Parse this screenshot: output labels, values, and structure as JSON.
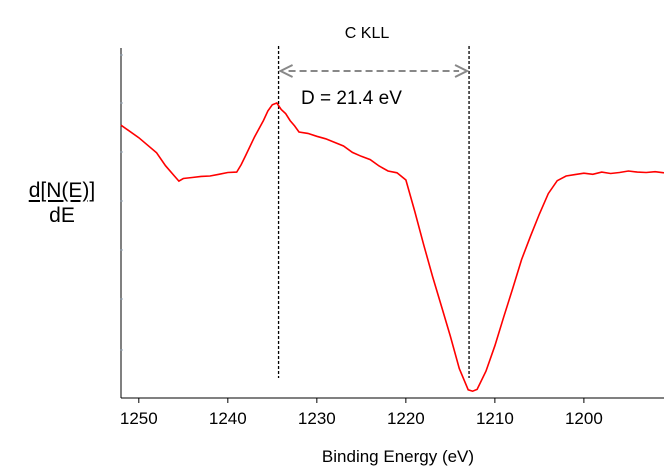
{
  "chart_data": {
    "type": "line",
    "title": "C KLL",
    "xlabel": "Binding Energy (eV)",
    "ylabel_numerator": "d[N(E)]",
    "ylabel_denominator": "dE",
    "x_reversed": true,
    "xlim": [
      1252,
      1191
    ],
    "ylim": [
      0,
      100
    ],
    "y_ticks_labeled": false,
    "x_ticks": [
      1250,
      1240,
      1230,
      1220,
      1210,
      1200
    ],
    "series_color": "#ff0000",
    "series": [
      {
        "x": [
          1252,
          1250,
          1248,
          1247,
          1246,
          1245.5,
          1245,
          1244,
          1243,
          1242,
          1241,
          1240,
          1239,
          1238.5,
          1238,
          1237,
          1236,
          1235.5,
          1235,
          1234.5,
          1234,
          1233.5,
          1233,
          1232.5,
          1232,
          1231,
          1230,
          1229,
          1228,
          1227,
          1226,
          1225,
          1224,
          1223,
          1222,
          1221,
          1220,
          1219,
          1218,
          1217,
          1216,
          1215,
          1214,
          1213,
          1212.5,
          1212,
          1211,
          1210,
          1209,
          1208,
          1207,
          1206,
          1205,
          1204,
          1203,
          1202,
          1201,
          1200,
          1199,
          1198,
          1197,
          1196,
          1195,
          1194,
          1193,
          1192,
          1191
        ],
        "y": [
          76.2,
          72.7,
          68.5,
          64.9,
          62.0,
          60.6,
          61.3,
          61.6,
          61.9,
          62.0,
          62.5,
          63.0,
          63.1,
          65.2,
          67.7,
          72.9,
          77.5,
          80.2,
          81.9,
          82.4,
          80.6,
          79.4,
          77.5,
          76.0,
          74.3,
          73.9,
          73.1,
          72.4,
          71.4,
          70.4,
          68.6,
          67.5,
          66.6,
          64.8,
          63.4,
          62.9,
          60.9,
          52.1,
          42.8,
          33.9,
          25.6,
          17.2,
          8.2,
          2.3,
          1.9,
          2.4,
          7.5,
          14.6,
          22.7,
          30.6,
          38.7,
          45.2,
          51.4,
          57.1,
          60.7,
          62.0,
          62.4,
          62.8,
          62.5,
          63.1,
          62.7,
          63.0,
          63.4,
          63.1,
          63.0,
          63.2,
          62.9
        ]
      }
    ],
    "markers": [
      {
        "x": 1234.3,
        "style": "dashed-vertical"
      },
      {
        "x": 1212.9,
        "style": "dashed-vertical"
      }
    ],
    "annotation": {
      "text": "D = 21.4 eV",
      "from": 1234.3,
      "to": 1212.9,
      "style": "double-arrow-dashed"
    }
  }
}
